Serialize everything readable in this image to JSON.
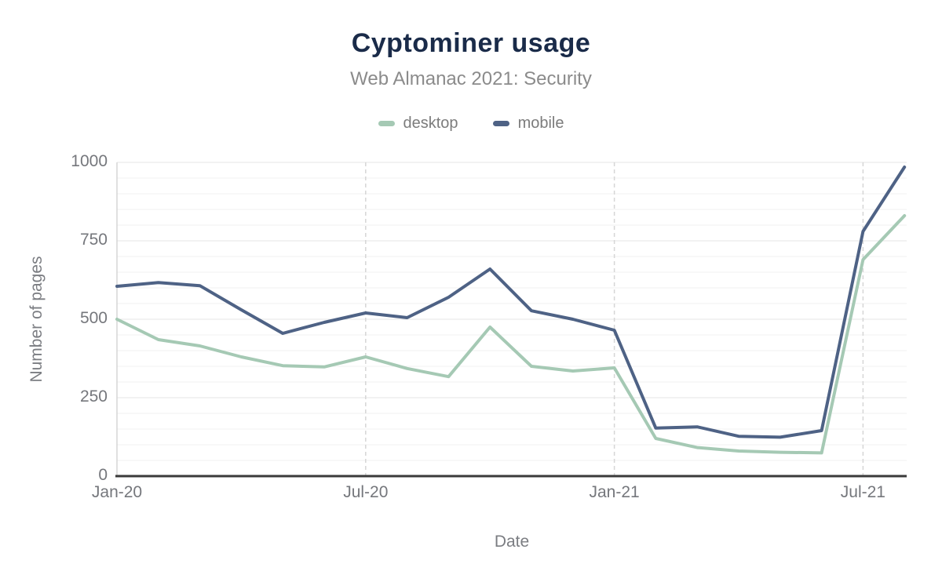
{
  "page": {
    "background": "#ffffff"
  },
  "chart_data": {
    "type": "line",
    "title": "Cyptominer usage",
    "subtitle": "Web Almanac 2021: Security",
    "xlabel": "Date",
    "ylabel": "Number of pages",
    "ylim": [
      0,
      1000
    ],
    "y_ticks": [
      0,
      250,
      500,
      750,
      1000
    ],
    "y_minor_step": 50,
    "grid": true,
    "legend_position": "top",
    "x_tick_labels": [
      "Jan-20",
      "Jul-20",
      "Jan-21",
      "Jul-21"
    ],
    "x_tick_month_index": [
      0,
      6,
      12,
      18
    ],
    "categories": [
      "Jan-20",
      "Feb-20",
      "Mar-20",
      "Apr-20",
      "May-20",
      "Jun-20",
      "Jul-20",
      "Aug-20",
      "Sep-20",
      "Oct-20",
      "Nov-20",
      "Dec-20",
      "Jan-21",
      "Feb-21",
      "Mar-21",
      "Apr-21",
      "May-21",
      "Jun-21",
      "Jul-21",
      "Aug-21"
    ],
    "series": [
      {
        "name": "desktop",
        "color": "#a5c9b4",
        "values": [
          500,
          435,
          415,
          380,
          352,
          348,
          380,
          343,
          317,
          475,
          350,
          335,
          345,
          120,
          91,
          80,
          76,
          74,
          690,
          830
        ]
      },
      {
        "name": "mobile",
        "color": "#4e6285",
        "values": [
          605,
          617,
          607,
          530,
          455,
          490,
          520,
          505,
          570,
          660,
          527,
          500,
          465,
          153,
          157,
          127,
          124,
          145,
          780,
          985
        ]
      }
    ],
    "colors": {
      "title": "#1a2b49",
      "subtitle": "#8b8b8b",
      "axis_line": "#3a3a3a",
      "major_grid": "#e6e6e6",
      "minor_grid": "#f2f2f2",
      "vertical_grid": "#d6d6d6",
      "tick_label": "#75777c"
    }
  }
}
